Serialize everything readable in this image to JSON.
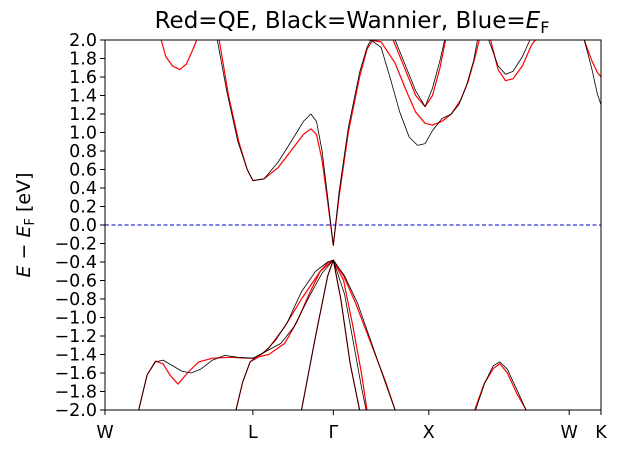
{
  "chart_data": {
    "type": "line",
    "title_parts": [
      "Red=QE, Black=Wannier, Blue=",
      "E",
      "F"
    ],
    "ylabel_parts": [
      "E",
      " − ",
      "E",
      "F",
      " [eV]"
    ],
    "xlabel": "",
    "ylim": [
      -2.0,
      2.0
    ],
    "xlim": [
      0,
      5.3
    ],
    "y_ticks": [
      -2.0,
      -1.8,
      -1.6,
      -1.4,
      -1.2,
      -1.0,
      -0.8,
      -0.6,
      -0.4,
      -0.2,
      0.0,
      0.2,
      0.4,
      0.6,
      0.8,
      1.0,
      1.2,
      1.4,
      1.6,
      1.8,
      2.0
    ],
    "y_tick_labels": [
      "−2.0",
      "−1.8",
      "−1.6",
      "−1.4",
      "−1.2",
      "−1.0",
      "−0.8",
      "−0.6",
      "−0.4",
      "−0.2",
      "0.0",
      "0.2",
      "0.4",
      "0.6",
      "0.8",
      "1.0",
      "1.2",
      "1.4",
      "1.6",
      "1.8",
      "2.0"
    ],
    "x_ticks": [
      {
        "label": "W",
        "x": 0.0
      },
      {
        "label": "L",
        "x": 1.58
      },
      {
        "label": "Γ",
        "x": 2.44
      },
      {
        "label": "X",
        "x": 3.46
      },
      {
        "label": "W",
        "x": 4.96
      },
      {
        "label": "K",
        "x": 5.3
      }
    ],
    "fermi_level": 0.0,
    "grid": false,
    "colors": {
      "qe": "#ff0000",
      "wannier": "#000000",
      "fermi": "#0000cc"
    },
    "series": [
      {
        "group": "qe",
        "points": [
          [
            0.36,
            -2.0
          ],
          [
            0.45,
            -1.62
          ],
          [
            0.54,
            -1.47
          ],
          [
            0.62,
            -1.5
          ],
          [
            0.7,
            -1.63
          ],
          [
            0.78,
            -1.72
          ],
          [
            0.88,
            -1.6
          ],
          [
            1.0,
            -1.48
          ],
          [
            1.15,
            -1.44
          ],
          [
            1.35,
            -1.43
          ],
          [
            1.5,
            -1.44
          ],
          [
            1.58,
            -1.44
          ],
          [
            1.75,
            -1.4
          ],
          [
            1.92,
            -1.28
          ],
          [
            2.05,
            -1.05
          ],
          [
            2.18,
            -0.75
          ],
          [
            2.3,
            -0.5
          ],
          [
            2.38,
            -0.41
          ],
          [
            2.44,
            -0.38
          ],
          [
            2.55,
            -0.55
          ],
          [
            2.68,
            -0.85
          ],
          [
            2.85,
            -1.3
          ],
          [
            3.0,
            -1.7
          ],
          [
            3.1,
            -2.0
          ]
        ]
      },
      {
        "group": "qe",
        "points": [
          [
            1.4,
            -2.0
          ],
          [
            1.47,
            -1.7
          ],
          [
            1.55,
            -1.48
          ],
          [
            1.62,
            -1.44
          ],
          [
            1.75,
            -1.33
          ],
          [
            1.92,
            -1.1
          ],
          [
            2.1,
            -0.8
          ],
          [
            2.3,
            -0.5
          ],
          [
            2.44,
            -0.38
          ],
          [
            2.55,
            -0.6
          ],
          [
            2.65,
            -1.1
          ],
          [
            2.74,
            -1.6
          ],
          [
            2.8,
            -2.0
          ]
        ]
      },
      {
        "group": "qe",
        "points": [
          [
            2.1,
            -2.0
          ],
          [
            2.25,
            -1.2
          ],
          [
            2.38,
            -0.55
          ],
          [
            2.44,
            -0.38
          ],
          [
            2.52,
            -0.8
          ],
          [
            2.62,
            -1.5
          ],
          [
            2.72,
            -2.0
          ]
        ]
      },
      {
        "group": "qe",
        "points": [
          [
            3.95,
            -2.0
          ],
          [
            4.05,
            -1.72
          ],
          [
            4.15,
            -1.55
          ],
          [
            4.22,
            -1.5
          ],
          [
            4.3,
            -1.6
          ],
          [
            4.4,
            -1.82
          ],
          [
            4.5,
            -2.0
          ]
        ]
      },
      {
        "group": "qe",
        "points": [
          [
            0.6,
            2.0
          ],
          [
            0.65,
            1.82
          ],
          [
            0.72,
            1.72
          ],
          [
            0.8,
            1.68
          ],
          [
            0.87,
            1.74
          ],
          [
            0.94,
            1.9
          ],
          [
            0.98,
            2.0
          ]
        ]
      },
      {
        "group": "qe",
        "points": [
          [
            1.22,
            2.0
          ],
          [
            1.32,
            1.4
          ],
          [
            1.43,
            0.9
          ],
          [
            1.52,
            0.6
          ],
          [
            1.58,
            0.48
          ],
          [
            1.7,
            0.5
          ],
          [
            1.85,
            0.62
          ],
          [
            2.0,
            0.82
          ],
          [
            2.12,
            0.98
          ],
          [
            2.2,
            1.04
          ],
          [
            2.26,
            0.98
          ],
          [
            2.32,
            0.7
          ],
          [
            2.38,
            0.25
          ],
          [
            2.44,
            -0.22
          ],
          [
            2.5,
            0.3
          ],
          [
            2.6,
            1.0
          ],
          [
            2.72,
            1.6
          ],
          [
            2.8,
            1.9
          ],
          [
            2.86,
            2.0
          ]
        ]
      },
      {
        "group": "qe",
        "points": [
          [
            2.82,
            2.0
          ],
          [
            2.95,
            1.98
          ],
          [
            3.1,
            1.75
          ],
          [
            3.22,
            1.45
          ],
          [
            3.32,
            1.22
          ],
          [
            3.42,
            1.1
          ],
          [
            3.5,
            1.08
          ],
          [
            3.6,
            1.12
          ],
          [
            3.7,
            1.2
          ],
          [
            3.8,
            1.35
          ],
          [
            3.88,
            1.55
          ],
          [
            3.95,
            1.8
          ],
          [
            4.0,
            2.0
          ]
        ]
      },
      {
        "group": "qe",
        "points": [
          [
            3.08,
            2.0
          ],
          [
            3.2,
            1.7
          ],
          [
            3.32,
            1.4
          ],
          [
            3.42,
            1.28
          ],
          [
            3.5,
            1.4
          ],
          [
            3.58,
            1.7
          ],
          [
            3.64,
            2.0
          ]
        ]
      },
      {
        "group": "qe",
        "points": [
          [
            4.12,
            2.0
          ],
          [
            4.2,
            1.68
          ],
          [
            4.28,
            1.56
          ],
          [
            4.36,
            1.58
          ],
          [
            4.46,
            1.72
          ],
          [
            4.56,
            1.95
          ],
          [
            4.6,
            2.0
          ]
        ]
      },
      {
        "group": "qe",
        "points": [
          [
            5.12,
            2.0
          ],
          [
            5.2,
            1.78
          ],
          [
            5.26,
            1.65
          ],
          [
            5.3,
            1.6
          ]
        ]
      },
      {
        "group": "wannier",
        "points": [
          [
            0.36,
            -2.0
          ],
          [
            0.45,
            -1.62
          ],
          [
            0.54,
            -1.48
          ],
          [
            0.62,
            -1.46
          ],
          [
            0.72,
            -1.52
          ],
          [
            0.82,
            -1.58
          ],
          [
            0.92,
            -1.6
          ],
          [
            1.02,
            -1.56
          ],
          [
            1.15,
            -1.46
          ],
          [
            1.28,
            -1.41
          ],
          [
            1.42,
            -1.43
          ],
          [
            1.58,
            -1.44
          ],
          [
            1.7,
            -1.38
          ],
          [
            1.82,
            -1.25
          ],
          [
            1.95,
            -1.05
          ],
          [
            2.1,
            -0.72
          ],
          [
            2.25,
            -0.5
          ],
          [
            2.38,
            -0.4
          ],
          [
            2.44,
            -0.38
          ],
          [
            2.56,
            -0.55
          ],
          [
            2.7,
            -0.85
          ],
          [
            2.85,
            -1.28
          ],
          [
            3.0,
            -1.72
          ],
          [
            3.1,
            -2.0
          ]
        ]
      },
      {
        "group": "wannier",
        "points": [
          [
            1.4,
            -2.0
          ],
          [
            1.47,
            -1.7
          ],
          [
            1.55,
            -1.48
          ],
          [
            1.62,
            -1.42
          ],
          [
            1.75,
            -1.35
          ],
          [
            1.88,
            -1.28
          ],
          [
            2.02,
            -1.1
          ],
          [
            2.18,
            -0.78
          ],
          [
            2.32,
            -0.52
          ],
          [
            2.44,
            -0.38
          ],
          [
            2.56,
            -0.75
          ],
          [
            2.66,
            -1.3
          ],
          [
            2.74,
            -1.75
          ],
          [
            2.79,
            -2.0
          ]
        ]
      },
      {
        "group": "wannier",
        "points": [
          [
            2.1,
            -2.0
          ],
          [
            2.25,
            -1.2
          ],
          [
            2.38,
            -0.55
          ],
          [
            2.44,
            -0.38
          ],
          [
            2.52,
            -0.8
          ],
          [
            2.62,
            -1.5
          ],
          [
            2.72,
            -2.0
          ]
        ]
      },
      {
        "group": "wannier",
        "points": [
          [
            3.96,
            -2.0
          ],
          [
            4.06,
            -1.7
          ],
          [
            4.15,
            -1.52
          ],
          [
            4.22,
            -1.48
          ],
          [
            4.3,
            -1.56
          ],
          [
            4.4,
            -1.78
          ],
          [
            4.5,
            -2.0
          ]
        ]
      },
      {
        "group": "wannier",
        "points": [
          [
            1.2,
            2.0
          ],
          [
            1.3,
            1.45
          ],
          [
            1.42,
            0.9
          ],
          [
            1.52,
            0.6
          ],
          [
            1.58,
            0.48
          ],
          [
            1.7,
            0.5
          ],
          [
            1.85,
            0.68
          ],
          [
            2.0,
            0.92
          ],
          [
            2.12,
            1.12
          ],
          [
            2.2,
            1.2
          ],
          [
            2.26,
            1.12
          ],
          [
            2.32,
            0.8
          ],
          [
            2.38,
            0.3
          ],
          [
            2.44,
            -0.22
          ],
          [
            2.5,
            0.35
          ],
          [
            2.6,
            1.05
          ],
          [
            2.72,
            1.65
          ],
          [
            2.8,
            1.92
          ],
          [
            2.84,
            2.0
          ]
        ]
      },
      {
        "group": "wannier",
        "points": [
          [
            2.84,
            2.0
          ],
          [
            2.95,
            1.92
          ],
          [
            3.05,
            1.58
          ],
          [
            3.15,
            1.22
          ],
          [
            3.25,
            0.95
          ],
          [
            3.34,
            0.86
          ],
          [
            3.42,
            0.88
          ],
          [
            3.5,
            1.02
          ],
          [
            3.6,
            1.15
          ],
          [
            3.7,
            1.2
          ],
          [
            3.78,
            1.3
          ],
          [
            3.86,
            1.5
          ],
          [
            3.94,
            1.78
          ],
          [
            3.98,
            2.0
          ]
        ]
      },
      {
        "group": "wannier",
        "points": [
          [
            3.1,
            2.0
          ],
          [
            3.2,
            1.75
          ],
          [
            3.32,
            1.45
          ],
          [
            3.42,
            1.28
          ],
          [
            3.5,
            1.48
          ],
          [
            3.58,
            1.78
          ],
          [
            3.63,
            2.0
          ]
        ]
      },
      {
        "group": "wannier",
        "points": [
          [
            4.1,
            2.0
          ],
          [
            4.2,
            1.72
          ],
          [
            4.28,
            1.63
          ],
          [
            4.36,
            1.66
          ],
          [
            4.46,
            1.82
          ],
          [
            4.54,
            2.0
          ]
        ]
      },
      {
        "group": "wannier",
        "points": [
          [
            5.12,
            2.0
          ],
          [
            5.2,
            1.7
          ],
          [
            5.26,
            1.42
          ],
          [
            5.3,
            1.3
          ]
        ]
      }
    ]
  }
}
